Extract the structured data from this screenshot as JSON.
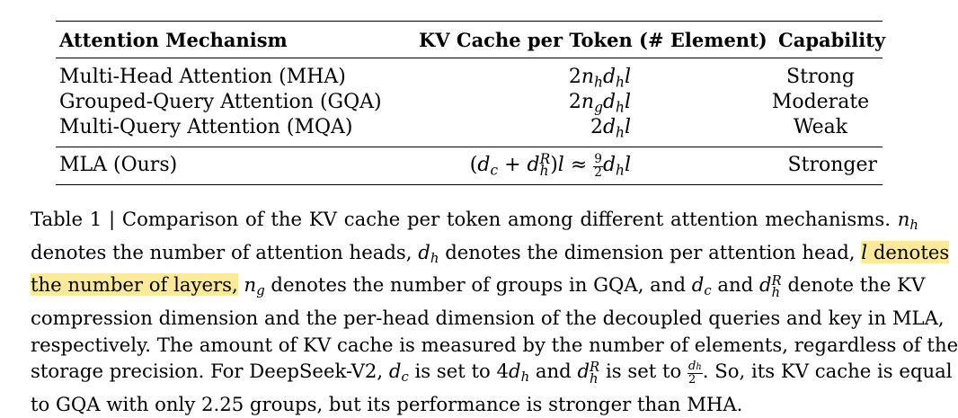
{
  "table": {
    "headers": [
      "Attention Mechanism",
      "KV Cache per Token (# Element)",
      "Capability"
    ],
    "rows": [
      {
        "mechanism": "Multi-Head Attention (MHA)",
        "kv_cache": "2n_h d_h l",
        "capability": "Strong"
      },
      {
        "mechanism": "Grouped-Query Attention (GQA)",
        "kv_cache": "2n_g d_h l",
        "capability": "Moderate"
      },
      {
        "mechanism": "Multi-Query Attention (MQA)",
        "kv_cache": "2d_h l",
        "capability": "Weak"
      },
      {
        "mechanism": "MLA (Ours)",
        "kv_cache": "(d_c + d_h^R) l ≈ 9/2 d_h l",
        "capability": "Stronger"
      }
    ]
  },
  "caption": {
    "label": "Table 1 | Comparison of the KV cache per token among different attention mechanisms.",
    "t1": "denotes the number of attention heads,",
    "t2": "denotes the dimension per attention head,",
    "highlight": "denotes the number of layers,",
    "t3": "denotes the number of groups in GQA, and",
    "and": "and",
    "t4": "denote the KV compression dimension and the per-head dimension of the decoupled queries and key in MLA, respectively. The amount of KV cache is measured by the number of elements, regardless of the storage precision. For DeepSeek-V2,",
    "t5": "is set to",
    "t6": "and",
    "t7": "is set to",
    "t8": ". So, its KV cache is equal to GQA with only 2.25 groups, but its performance is stronger than MHA."
  },
  "colors": {
    "highlight": "#fde99a",
    "text": "#000000",
    "background": "#ffffff"
  }
}
